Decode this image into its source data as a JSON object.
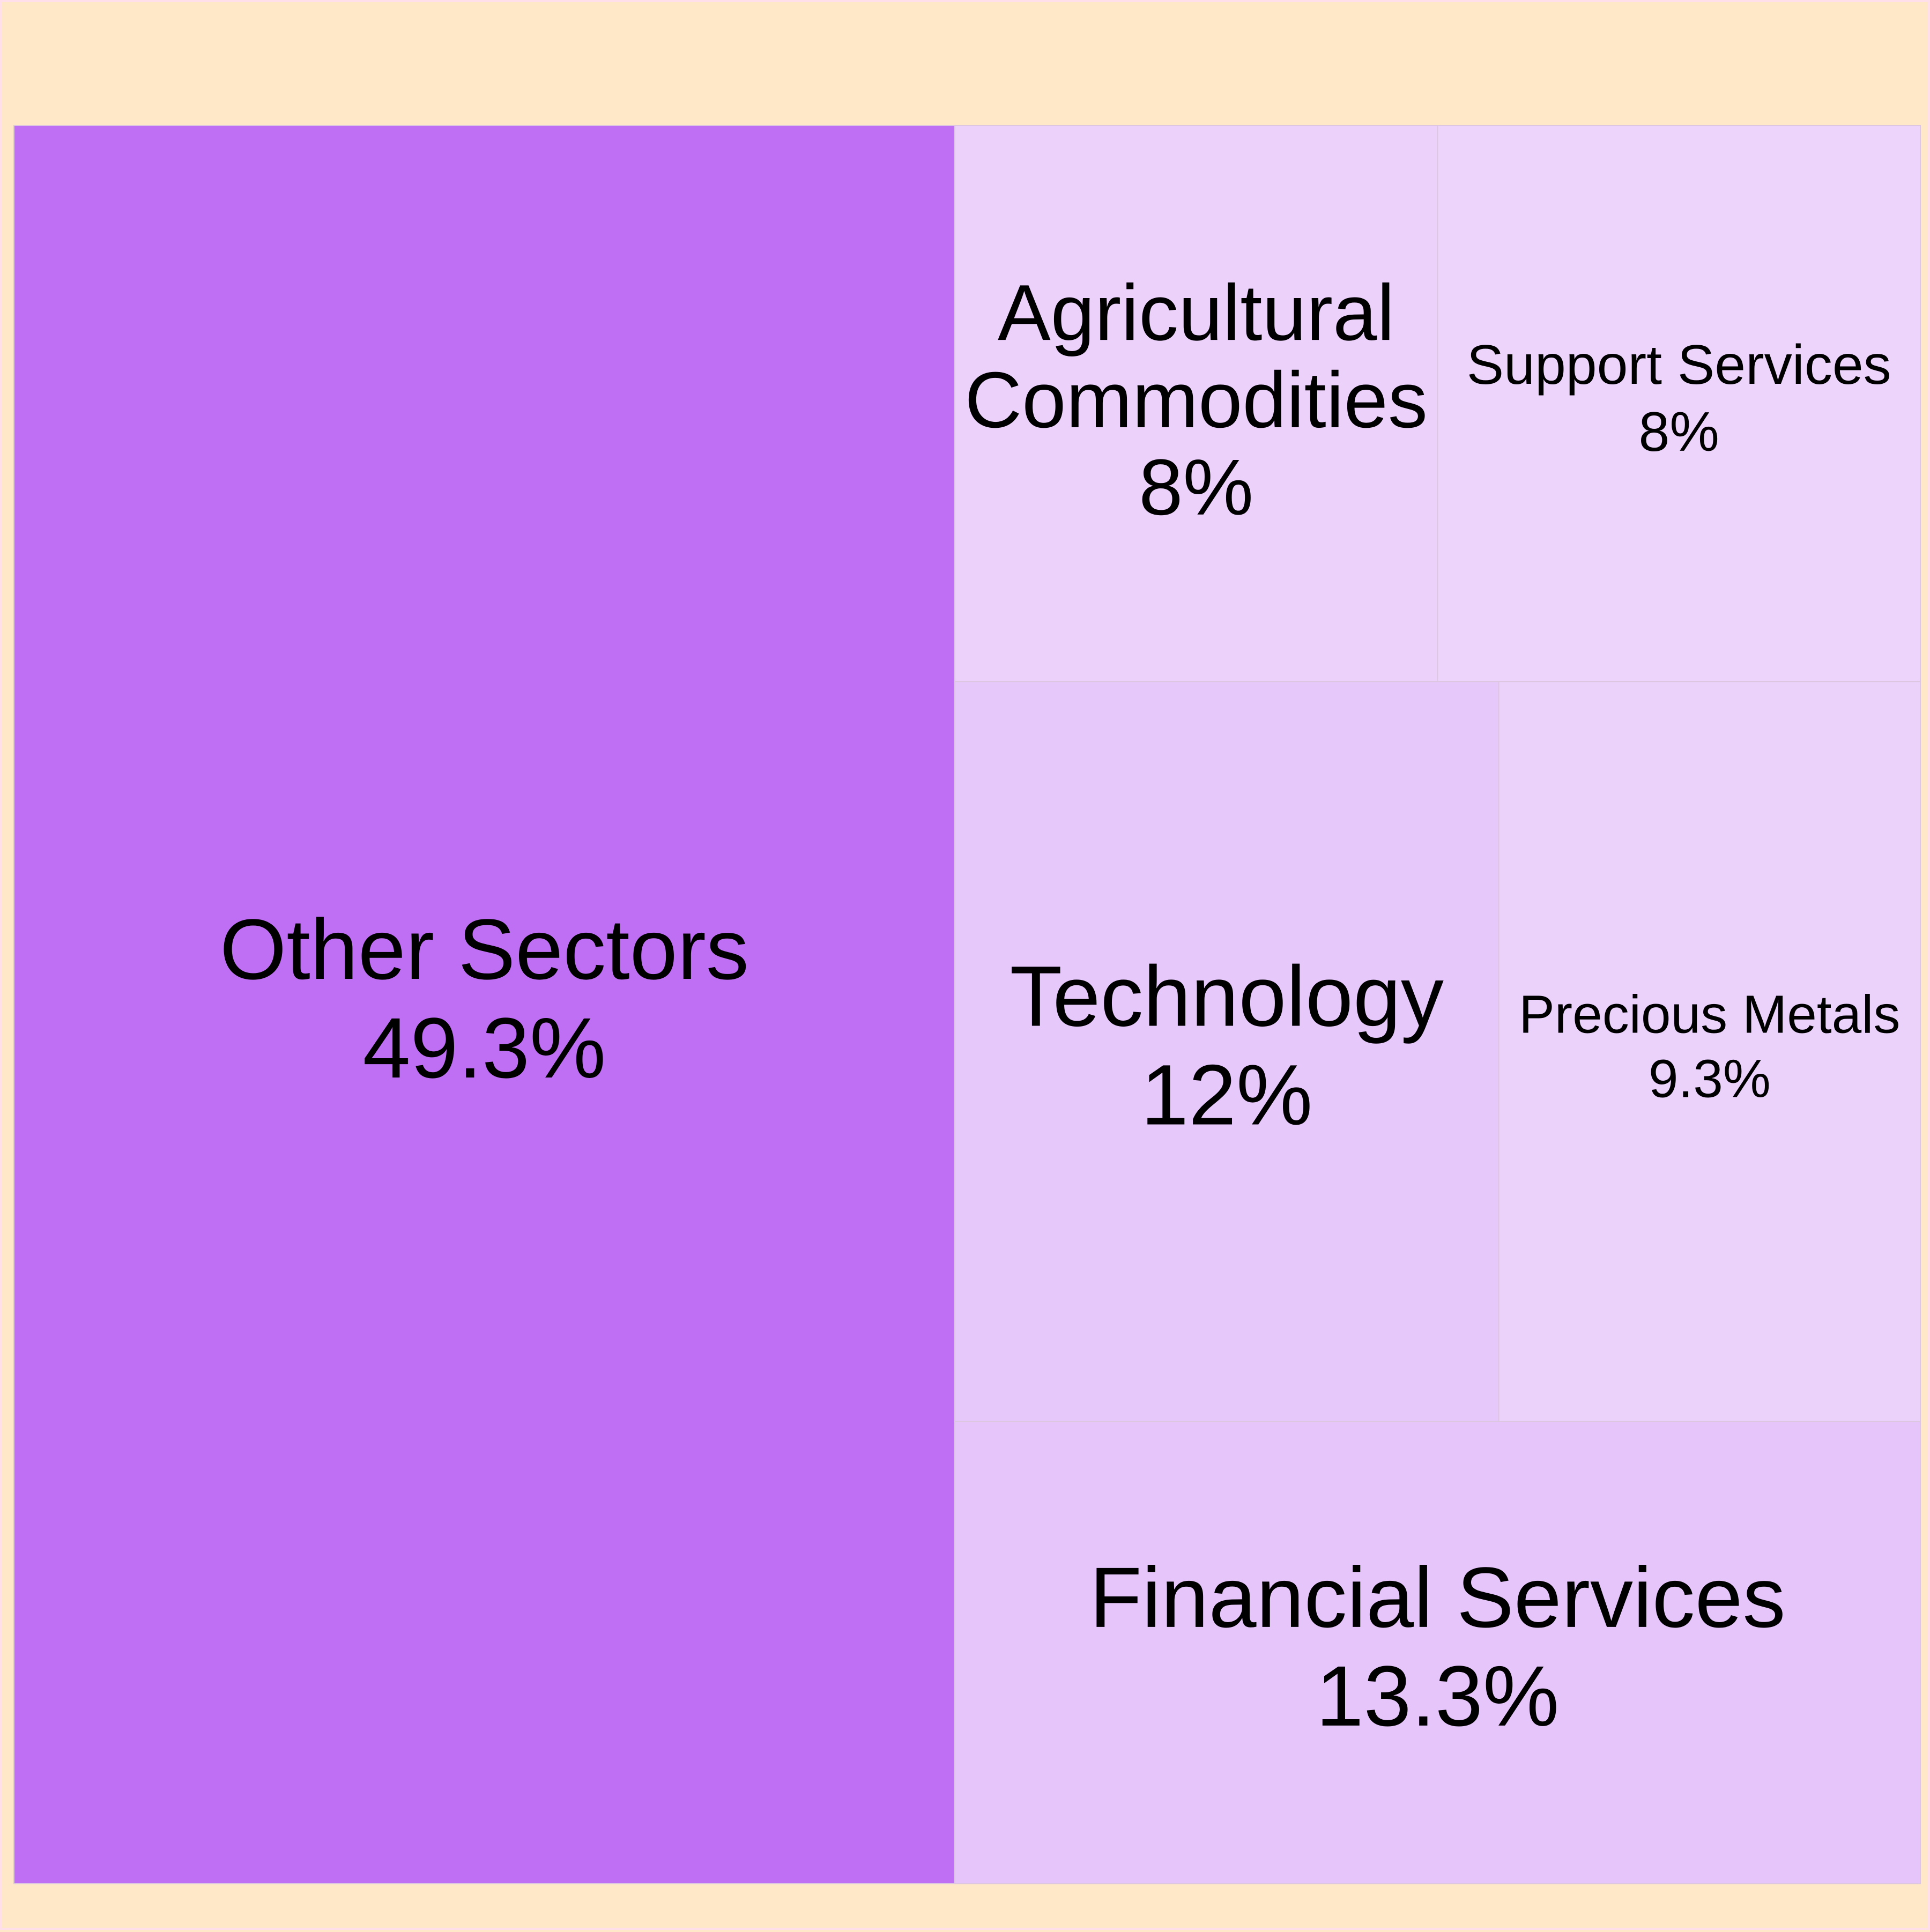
{
  "chart_data": {
    "type": "treemap",
    "tiles": [
      {
        "name": "Other Sectors",
        "value": 49.3,
        "label": "49.3%",
        "color": "#bf6ff3"
      },
      {
        "name": "Financial Services",
        "value": 13.3,
        "label": "13.3%",
        "color": "#e6c6fa"
      },
      {
        "name": "Technology",
        "value": 12,
        "label": "12%",
        "color": "#e6c8fa"
      },
      {
        "name": "Precious Metals",
        "value": 9.3,
        "label": "9.3%",
        "color": "#ead2fb"
      },
      {
        "name": "Agricultural Commodities",
        "value": 8,
        "label": "8%",
        "color": "#ecd1fb"
      },
      {
        "name": "Support Services",
        "value": 8,
        "label": "8%",
        "color": "#edd4fb"
      }
    ],
    "background_color": "#ffe8c7"
  }
}
